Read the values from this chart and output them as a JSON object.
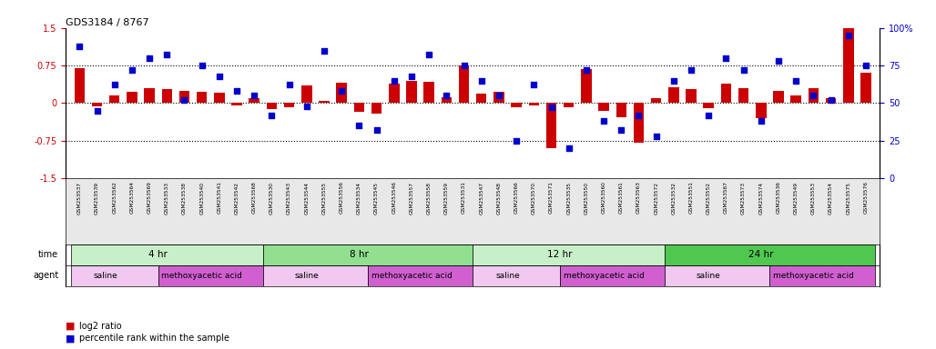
{
  "title": "GDS3184 / 8767",
  "samples": [
    "GSM253537",
    "GSM253539",
    "GSM253562",
    "GSM253564",
    "GSM253569",
    "GSM253533",
    "GSM253538",
    "GSM253540",
    "GSM253541",
    "GSM253542",
    "GSM253568",
    "GSM253530",
    "GSM253543",
    "GSM253544",
    "GSM253555",
    "GSM253556",
    "GSM253534",
    "GSM253545",
    "GSM253546",
    "GSM253557",
    "GSM253558",
    "GSM253559",
    "GSM253531",
    "GSM253547",
    "GSM253548",
    "GSM253566",
    "GSM253570",
    "GSM253571",
    "GSM253535",
    "GSM253550",
    "GSM253560",
    "GSM253561",
    "GSM253563",
    "GSM253572",
    "GSM253532",
    "GSM253551",
    "GSM253552",
    "GSM253567",
    "GSM253573",
    "GSM253574",
    "GSM253536",
    "GSM253549",
    "GSM253553",
    "GSM253554",
    "GSM253575",
    "GSM253576"
  ],
  "log2_ratio": [
    0.7,
    -0.07,
    0.15,
    0.22,
    0.3,
    0.28,
    0.25,
    0.22,
    0.2,
    -0.05,
    0.1,
    -0.12,
    -0.08,
    0.35,
    0.05,
    0.4,
    -0.18,
    -0.22,
    0.38,
    0.45,
    0.42,
    0.12,
    0.75,
    0.18,
    0.22,
    -0.08,
    -0.05,
    -0.9,
    -0.08,
    0.68,
    -0.15,
    -0.28,
    -0.8,
    0.1,
    0.32,
    0.28,
    -0.1,
    0.38,
    0.3,
    -0.3,
    0.25,
    0.15,
    0.3,
    0.1,
    1.55,
    0.6
  ],
  "percentile": [
    88,
    45,
    62,
    72,
    80,
    82,
    52,
    75,
    68,
    58,
    55,
    42,
    62,
    48,
    85,
    58,
    35,
    32,
    65,
    68,
    82,
    55,
    75,
    65,
    55,
    25,
    62,
    47,
    20,
    72,
    38,
    32,
    42,
    28,
    65,
    72,
    42,
    80,
    72,
    38,
    78,
    65,
    55,
    52,
    95,
    75
  ],
  "time_groups": [
    {
      "label": "4 hr",
      "start": 0,
      "end": 11,
      "color": "#c8f0c8"
    },
    {
      "label": "8 hr",
      "start": 11,
      "end": 23,
      "color": "#90e090"
    },
    {
      "label": "12 hr",
      "start": 23,
      "end": 34,
      "color": "#c8f0c8"
    },
    {
      "label": "24 hr",
      "start": 34,
      "end": 46,
      "color": "#50c850"
    }
  ],
  "agent_groups": [
    {
      "label": "saline",
      "start": 0,
      "end": 5,
      "color": "#f0c8f0"
    },
    {
      "label": "methoxyacetic acid",
      "start": 5,
      "end": 11,
      "color": "#d060d0"
    },
    {
      "label": "saline",
      "start": 11,
      "end": 17,
      "color": "#f0c8f0"
    },
    {
      "label": "methoxyacetic acid",
      "start": 17,
      "end": 23,
      "color": "#d060d0"
    },
    {
      "label": "saline",
      "start": 23,
      "end": 28,
      "color": "#f0c8f0"
    },
    {
      "label": "methoxyacetic acid",
      "start": 28,
      "end": 34,
      "color": "#d060d0"
    },
    {
      "label": "saline",
      "start": 34,
      "end": 40,
      "color": "#f0c8f0"
    },
    {
      "label": "methoxyacetic acid",
      "start": 40,
      "end": 46,
      "color": "#d060d0"
    }
  ],
  "bar_color": "#cc0000",
  "dot_color": "#0000cc",
  "ylim": [
    -1.5,
    1.5
  ],
  "y2lim": [
    0,
    100
  ],
  "yticks": [
    -1.5,
    -0.75,
    0.0,
    0.75,
    1.5
  ],
  "y2ticks": [
    0,
    25,
    50,
    75,
    100
  ],
  "hlines": [
    0.75,
    0.0,
    -0.75
  ],
  "bg_color": "#ffffff"
}
